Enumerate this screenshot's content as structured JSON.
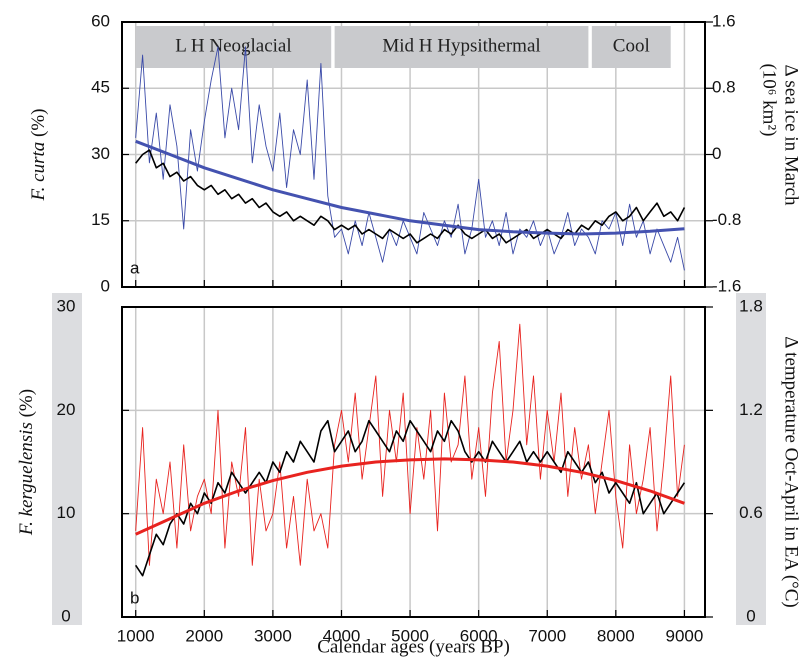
{
  "chart_data": [
    {
      "type": "line",
      "panel_label": "a",
      "ylabel": "F. curta",
      "ylabel_unit": "(%)",
      "y2label": "Δ sea ice in March",
      "y2label_unit": "(10⁶ km²)",
      "xlim": [
        800,
        9300
      ],
      "xticks": [
        1000,
        2000,
        3000,
        4000,
        5000,
        6000,
        7000,
        8000,
        9000
      ],
      "ylim": [
        0,
        60
      ],
      "yticks": [
        0,
        15,
        30,
        45,
        60
      ],
      "y2lim": [
        -1.6,
        1.6
      ],
      "y2ticks": [
        -1.6,
        -0.8,
        0,
        0.8,
        1.6
      ],
      "grid": true,
      "periods": [
        {
          "label": "L H Neoglacial",
          "start": 1000,
          "end": 3850
        },
        {
          "label": "Mid H Hypsithermal",
          "start": 3900,
          "end": 7600
        },
        {
          "label": "Cool",
          "start": 7650,
          "end": 8800
        }
      ],
      "x": [
        1000,
        1100,
        1200,
        1300,
        1400,
        1500,
        1600,
        1700,
        1800,
        1900,
        2000,
        2100,
        2200,
        2300,
        2400,
        2500,
        2600,
        2700,
        2800,
        2900,
        3000,
        3100,
        3200,
        3300,
        3400,
        3500,
        3600,
        3700,
        3800,
        3900,
        4000,
        4100,
        4200,
        4300,
        4400,
        4500,
        4600,
        4700,
        4800,
        4900,
        5000,
        5100,
        5200,
        5300,
        5400,
        5500,
        5600,
        5700,
        5800,
        5900,
        6000,
        6100,
        6200,
        6300,
        6400,
        6500,
        6600,
        6700,
        6800,
        6900,
        7000,
        7100,
        7200,
        7300,
        7400,
        7500,
        7600,
        7700,
        7800,
        7900,
        8000,
        8100,
        8200,
        8300,
        8400,
        8500,
        8600,
        8700,
        8800,
        8900,
        9000
      ],
      "series": [
        {
          "color": "#3a4aa8",
          "axis": "y2",
          "values": [
            0.2,
            1.2,
            -0.1,
            0.5,
            -0.3,
            0.6,
            0.1,
            -0.9,
            0.3,
            -0.2,
            0.4,
            0.9,
            1.3,
            0.2,
            0.8,
            0.3,
            1.3,
            -0.1,
            0.6,
            0.1,
            -0.2,
            0.5,
            -0.4,
            0.3,
            0.0,
            0.9,
            -0.3,
            1.1,
            -0.5,
            -1.0,
            -0.9,
            -1.2,
            -0.8,
            -1.1,
            -0.7,
            -1.0,
            -1.3,
            -0.9,
            -1.1,
            -0.8,
            -1.0,
            -1.2,
            -0.7,
            -0.9,
            -1.1,
            -0.8,
            -1.0,
            -0.6,
            -1.2,
            -0.9,
            -0.3,
            -1.0,
            -0.8,
            -1.1,
            -0.7,
            -1.2,
            -0.9,
            -1.0,
            -0.8,
            -1.1,
            -0.9,
            -1.2,
            -1.0,
            -0.7,
            -1.1,
            -0.9,
            -1.0,
            -1.2,
            -0.8,
            -0.9,
            -0.7,
            -1.1,
            -0.6,
            -1.0,
            -0.8,
            -1.2,
            -0.9,
            -1.1,
            -1.3,
            -1.0,
            -1.4
          ]
        },
        {
          "color": "#000000",
          "axis": "y",
          "values": [
            28,
            30,
            31,
            27,
            28,
            25,
            26,
            24,
            25,
            23,
            22,
            23,
            21,
            22,
            20,
            21,
            19,
            20,
            18,
            19,
            17,
            16,
            17,
            15,
            16,
            15,
            14,
            16,
            15,
            13,
            14,
            13,
            14,
            12,
            13,
            12,
            11,
            13,
            12,
            11,
            12,
            10,
            11,
            12,
            11,
            13,
            12,
            14,
            12,
            11,
            12,
            13,
            11,
            12,
            10,
            11,
            12,
            13,
            11,
            12,
            13,
            12,
            11,
            13,
            12,
            14,
            13,
            15,
            14,
            16,
            17,
            15,
            16,
            18,
            15,
            17,
            19,
            16,
            17,
            15,
            18
          ]
        },
        {
          "color": "#4452b0",
          "axis": "y",
          "x": [
            1000,
            1500,
            2000,
            2500,
            3000,
            3500,
            4000,
            4500,
            5000,
            5500,
            6000,
            6500,
            7000,
            7500,
            8000,
            8500,
            9000
          ],
          "values": [
            33,
            30,
            27,
            24.5,
            22,
            20,
            18,
            16.5,
            15,
            14,
            13,
            12.5,
            12.2,
            12,
            12.2,
            12.6,
            13.2
          ]
        }
      ]
    },
    {
      "type": "line",
      "panel_label": "b",
      "ylabel": "F. kerguelensis",
      "ylabel_unit": "(%)",
      "y2label": "Δ temperature Oct-April in EA (°C)",
      "xlabel": "Calendar ages (years BP)",
      "xlim": [
        800,
        9300
      ],
      "xticks": [
        1000,
        2000,
        3000,
        4000,
        5000,
        6000,
        7000,
        8000,
        9000
      ],
      "ylim": [
        0,
        30
      ],
      "yticks": [
        0,
        10,
        20,
        30
      ],
      "y2lim": [
        0,
        1.8
      ],
      "y2ticks": [
        0,
        0.6,
        1.2,
        1.8
      ],
      "grid": true,
      "x": [
        1000,
        1100,
        1200,
        1300,
        1400,
        1500,
        1600,
        1700,
        1800,
        1900,
        2000,
        2100,
        2200,
        2300,
        2400,
        2500,
        2600,
        2700,
        2800,
        2900,
        3000,
        3100,
        3200,
        3300,
        3400,
        3500,
        3600,
        3700,
        3800,
        3900,
        4000,
        4100,
        4200,
        4300,
        4400,
        4500,
        4600,
        4700,
        4800,
        4900,
        5000,
        5100,
        5200,
        5300,
        5400,
        5500,
        5600,
        5700,
        5800,
        5900,
        6000,
        6100,
        6200,
        6300,
        6400,
        6500,
        6600,
        6700,
        6800,
        6900,
        7000,
        7100,
        7200,
        7300,
        7400,
        7500,
        7600,
        7700,
        7800,
        7900,
        8000,
        8100,
        8200,
        8300,
        8400,
        8500,
        8600,
        8700,
        8800,
        8900,
        9000
      ],
      "series": [
        {
          "color": "#e8231f",
          "axis": "y2",
          "values": [
            0.5,
            1.1,
            0.3,
            0.8,
            0.6,
            0.9,
            0.4,
            1.0,
            0.5,
            0.7,
            0.8,
            0.6,
            1.2,
            0.4,
            0.9,
            0.7,
            1.1,
            0.3,
            0.8,
            0.5,
            0.6,
            0.9,
            0.4,
            0.7,
            0.3,
            0.8,
            0.5,
            0.6,
            0.4,
            1.0,
            1.2,
            0.9,
            1.3,
            0.8,
            1.1,
            1.4,
            0.7,
            1.2,
            0.9,
            1.3,
            0.6,
            1.1,
            0.8,
            1.2,
            0.5,
            1.3,
            0.9,
            1.0,
            1.4,
            0.8,
            1.1,
            0.7,
            1.3,
            1.6,
            0.9,
            1.2,
            1.7,
            1.0,
            1.4,
            0.8,
            1.2,
            0.9,
            1.3,
            0.7,
            1.1,
            0.8,
            1.0,
            0.6,
            0.9,
            1.2,
            0.7,
            0.4,
            1.0,
            0.6,
            0.8,
            1.1,
            0.5,
            0.9,
            1.4,
            0.7,
            1.0
          ]
        },
        {
          "color": "#000000",
          "axis": "y",
          "values": [
            5,
            4,
            6,
            8,
            7,
            9,
            10,
            9,
            11,
            10,
            12,
            11,
            13,
            12,
            14,
            13,
            12,
            13,
            14,
            13,
            15,
            14,
            16,
            15,
            17,
            16,
            15,
            18,
            19,
            16,
            17,
            18,
            16,
            17,
            19,
            18,
            17,
            16,
            18,
            17,
            19,
            18,
            17,
            16,
            18,
            17,
            19,
            18,
            16,
            15,
            16,
            15,
            17,
            16,
            15,
            16,
            17,
            15,
            16,
            15,
            16,
            15,
            14,
            16,
            15,
            14,
            15,
            13,
            14,
            12,
            13,
            12,
            11,
            13,
            10,
            11,
            12,
            10,
            11,
            12,
            13
          ]
        },
        {
          "color": "#e8231f",
          "axis": "y",
          "x": [
            1000,
            1500,
            2000,
            2500,
            3000,
            3500,
            4000,
            4500,
            5000,
            5500,
            6000,
            6500,
            7000,
            7500,
            8000,
            8500,
            9000
          ],
          "values": [
            8,
            9.5,
            11,
            12.2,
            13.2,
            14,
            14.6,
            15,
            15.2,
            15.3,
            15.2,
            15,
            14.6,
            14,
            13.2,
            12.2,
            11
          ]
        }
      ]
    }
  ]
}
